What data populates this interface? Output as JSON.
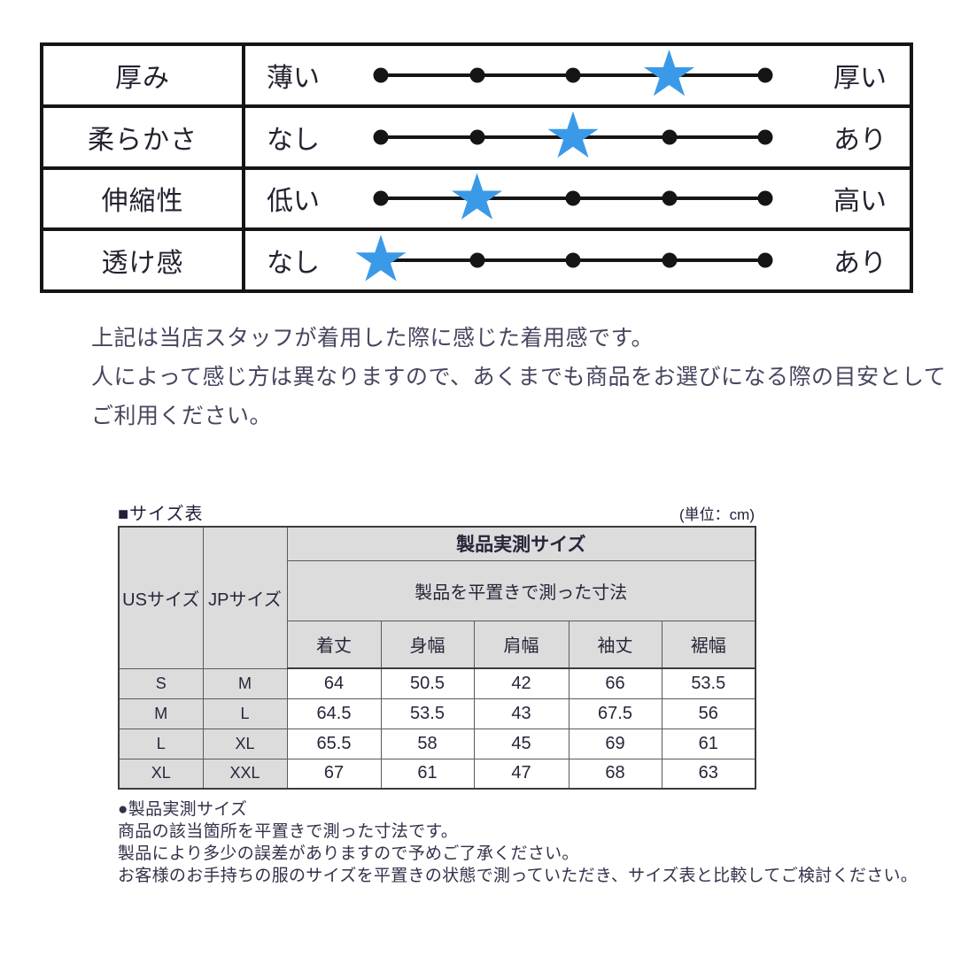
{
  "feel_table": {
    "rows": [
      {
        "label": "厚み",
        "left": "薄い",
        "right": "厚い",
        "rating": 4,
        "max": 5
      },
      {
        "label": "柔らかさ",
        "left": "なし",
        "right": "あり",
        "rating": 3,
        "max": 5
      },
      {
        "label": "伸縮性",
        "left": "低い",
        "right": "高い",
        "rating": 2,
        "max": 5
      },
      {
        "label": "透け感",
        "left": "なし",
        "right": "あり",
        "rating": 1,
        "max": 5
      }
    ],
    "star_color": "#3b9ae8",
    "dot_color": "#151515"
  },
  "intro": {
    "lines": [
      "上記は当店スタッフが着用した際に感じた着用感です。",
      "人によって感じ方は異なりますので、あくまでも商品をお選びになる際の目安として",
      "ご利用ください。"
    ]
  },
  "size_section": {
    "title": "■サイズ表",
    "unit": "(単位：cm)",
    "table": {
      "col_us": "USサイズ",
      "col_jp": "JPサイズ",
      "group_header": "製品実測サイズ",
      "group_subheader": "製品を平置きで測った寸法",
      "measure_headers": [
        "着丈",
        "身幅",
        "肩幅",
        "袖丈",
        "裾幅"
      ],
      "rows": [
        {
          "us": "S",
          "jp": "M",
          "values": [
            "64",
            "50.5",
            "42",
            "66",
            "53.5"
          ]
        },
        {
          "us": "M",
          "jp": "L",
          "values": [
            "64.5",
            "53.5",
            "43",
            "67.5",
            "56"
          ]
        },
        {
          "us": "L",
          "jp": "XL",
          "values": [
            "65.5",
            "58",
            "45",
            "69",
            "61"
          ]
        },
        {
          "us": "XL",
          "jp": "XXL",
          "values": [
            "67",
            "61",
            "47",
            "68",
            "63"
          ]
        }
      ]
    }
  },
  "notes": {
    "lines": [
      "●製品実測サイズ",
      "商品の該当箇所を平置きで測った寸法です。",
      "製品により多少の誤差がありますので予めご了承ください。",
      "お客様のお手持ちの服のサイズを平置きの状態で測っていただき、サイズ表と比較してご検討ください。"
    ]
  }
}
